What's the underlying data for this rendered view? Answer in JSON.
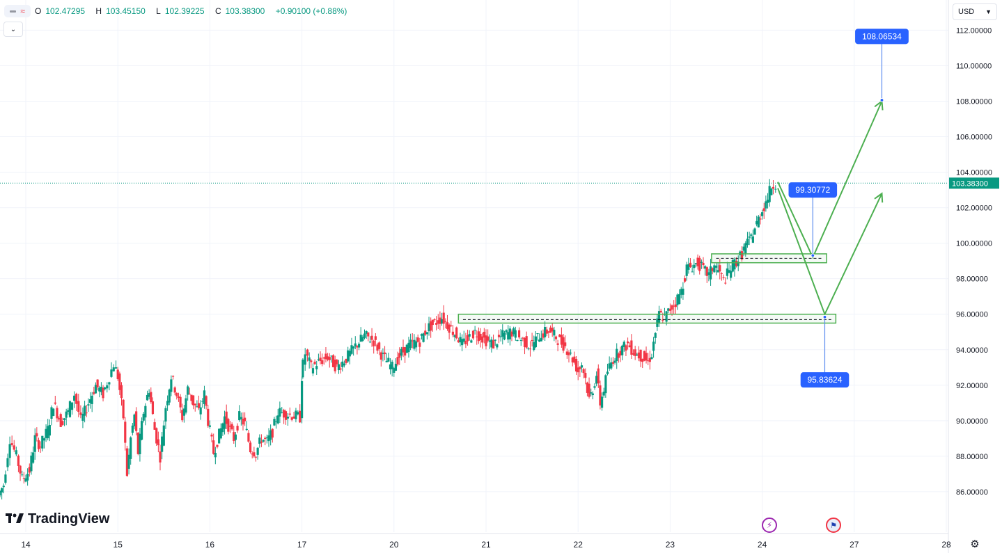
{
  "header": {
    "ohlc": [
      {
        "key": "O",
        "value": "102.47295"
      },
      {
        "key": "H",
        "value": "103.45150"
      },
      {
        "key": "L",
        "value": "102.39225"
      },
      {
        "key": "C",
        "value": "103.38300"
      }
    ],
    "change": "+0.90100 (+0.88%)",
    "currency": "USD"
  },
  "logo_text": "TradingView",
  "colors": {
    "up": "#089981",
    "down": "#f23645",
    "projection": "#4caf50",
    "label_bg": "#2962ff",
    "grid": "#f0f3fa"
  },
  "chart_data": {
    "type": "candlestick",
    "title": "",
    "ylim": [
      84.9,
      113.7
    ],
    "y_ticks": [
      "112.00000",
      "110.00000",
      "108.00000",
      "106.00000",
      "104.00000",
      "102.00000",
      "100.00000",
      "98.00000",
      "96.00000",
      "94.00000",
      "92.00000",
      "90.00000",
      "88.00000",
      "86.00000"
    ],
    "y_tick_values": [
      112,
      110,
      108,
      106,
      104,
      102,
      100,
      98,
      96,
      94,
      92,
      90,
      88,
      86
    ],
    "x_ticks": [
      {
        "label": "14",
        "x": 0.0
      },
      {
        "label": "15",
        "x": 1.0
      },
      {
        "label": "16",
        "x": 2.0
      },
      {
        "label": "17",
        "x": 3.0
      },
      {
        "label": "20",
        "x": 4.0
      },
      {
        "label": "21",
        "x": 5.0
      },
      {
        "label": "22",
        "x": 6.0
      },
      {
        "label": "23",
        "x": 7.0
      },
      {
        "label": "24",
        "x": 8.0
      },
      {
        "label": "27",
        "x": 9.0
      },
      {
        "label": "28",
        "x": 10.0
      }
    ],
    "last_price": 103.383,
    "last_price_label": "103.38300",
    "price_path": [
      [
        -0.28,
        85.8
      ],
      [
        -0.22,
        86.4
      ],
      [
        -0.15,
        89.0
      ],
      [
        -0.08,
        88.0
      ],
      [
        -0.02,
        86.7
      ],
      [
        0.06,
        87.2
      ],
      [
        0.12,
        89.0
      ],
      [
        0.18,
        88.6
      ],
      [
        0.26,
        89.5
      ],
      [
        0.32,
        91.0
      ],
      [
        0.4,
        89.9
      ],
      [
        0.48,
        90.5
      ],
      [
        0.55,
        91.5
      ],
      [
        0.62,
        90.0
      ],
      [
        0.7,
        91.0
      ],
      [
        0.78,
        92.0
      ],
      [
        0.86,
        91.5
      ],
      [
        0.93,
        92.5
      ],
      [
        0.98,
        93.2
      ],
      [
        1.02,
        92.5
      ],
      [
        1.08,
        90.2
      ],
      [
        1.12,
        87.0
      ],
      [
        1.16,
        89.0
      ],
      [
        1.2,
        90.3
      ],
      [
        1.24,
        88.2
      ],
      [
        1.3,
        90.5
      ],
      [
        1.36,
        91.8
      ],
      [
        1.42,
        89.5
      ],
      [
        1.48,
        88.0
      ],
      [
        1.54,
        90.8
      ],
      [
        1.6,
        92.5
      ],
      [
        1.66,
        91.5
      ],
      [
        1.72,
        90.2
      ],
      [
        1.78,
        91.8
      ],
      [
        1.84,
        91.0
      ],
      [
        1.9,
        90.5
      ],
      [
        1.96,
        91.5
      ],
      [
        2.0,
        90.0
      ],
      [
        2.06,
        88.2
      ],
      [
        2.12,
        89.2
      ],
      [
        2.18,
        90.2
      ],
      [
        2.28,
        89.0
      ],
      [
        2.34,
        90.2
      ],
      [
        2.4,
        89.8
      ],
      [
        2.46,
        88.4
      ],
      [
        2.52,
        88.2
      ],
      [
        2.58,
        89.0
      ],
      [
        2.64,
        88.8
      ],
      [
        2.7,
        89.4
      ],
      [
        2.76,
        90.5
      ],
      [
        3.0,
        90.2
      ],
      [
        3.01,
        92.5
      ],
      [
        3.06,
        93.8
      ],
      [
        3.12,
        93.0
      ],
      [
        3.2,
        93.3
      ],
      [
        3.3,
        93.6
      ],
      [
        3.4,
        93.0
      ],
      [
        3.5,
        93.5
      ],
      [
        3.6,
        94.2
      ],
      [
        3.7,
        94.8
      ],
      [
        3.8,
        94.5
      ],
      [
        3.9,
        93.6
      ],
      [
        4.0,
        93.0
      ],
      [
        4.1,
        93.8
      ],
      [
        4.2,
        94.3
      ],
      [
        4.3,
        94.5
      ],
      [
        4.38,
        95.2
      ],
      [
        4.46,
        95.5
      ],
      [
        4.54,
        95.8
      ],
      [
        4.62,
        95.3
      ],
      [
        4.7,
        94.8
      ],
      [
        4.76,
        94.3
      ],
      [
        4.82,
        94.6
      ],
      [
        4.9,
        95.0
      ],
      [
        5.0,
        94.6
      ],
      [
        5.1,
        94.3
      ],
      [
        5.2,
        94.8
      ],
      [
        5.3,
        95.0
      ],
      [
        5.4,
        94.6
      ],
      [
        5.5,
        94.2
      ],
      [
        5.6,
        94.8
      ],
      [
        5.7,
        95.1
      ],
      [
        5.8,
        94.6
      ],
      [
        5.88,
        94.2
      ],
      [
        5.96,
        93.5
      ],
      [
        6.02,
        92.8
      ],
      [
        6.06,
        93.2
      ],
      [
        6.1,
        92.4
      ],
      [
        6.14,
        91.2
      ],
      [
        6.18,
        91.8
      ],
      [
        6.22,
        92.6
      ],
      [
        6.26,
        91.0
      ],
      [
        6.3,
        91.8
      ],
      [
        6.34,
        92.8
      ],
      [
        6.4,
        93.5
      ],
      [
        6.48,
        94.0
      ],
      [
        6.56,
        94.3
      ],
      [
        6.64,
        93.8
      ],
      [
        6.72,
        93.6
      ],
      [
        6.78,
        93.3
      ],
      [
        6.82,
        93.8
      ],
      [
        6.86,
        95.0
      ],
      [
        6.9,
        96.0
      ],
      [
        6.96,
        95.8
      ],
      [
        7.02,
        96.3
      ],
      [
        7.08,
        96.7
      ],
      [
        7.14,
        97.3
      ],
      [
        7.2,
        98.6
      ],
      [
        7.26,
        98.7
      ],
      [
        7.32,
        98.9
      ],
      [
        7.38,
        98.5
      ],
      [
        7.44,
        98.2
      ],
      [
        7.5,
        98.8
      ],
      [
        7.56,
        98.3
      ],
      [
        7.6,
        97.9
      ],
      [
        7.66,
        98.4
      ],
      [
        7.72,
        98.9
      ],
      [
        7.76,
        99.1
      ],
      [
        7.8,
        99.4
      ],
      [
        7.84,
        99.9
      ],
      [
        7.88,
        100.1
      ],
      [
        7.92,
        100.6
      ],
      [
        7.96,
        101.1
      ],
      [
        8.0,
        101.6
      ],
      [
        8.04,
        102.1
      ],
      [
        8.08,
        102.6
      ],
      [
        8.12,
        103.2
      ],
      [
        8.17,
        103.383
      ]
    ],
    "support_zones": [
      {
        "x0": 4.7,
        "x1": 8.8,
        "y0": 95.5,
        "y1": 96.0
      },
      {
        "x0": 7.45,
        "x1": 8.7,
        "y0": 98.9,
        "y1": 99.4
      }
    ],
    "dashed_levels": [
      {
        "x0": 4.75,
        "x1": 8.75,
        "y": 95.7
      },
      {
        "x0": 7.5,
        "x1": 8.65,
        "y": 99.15
      }
    ],
    "projections": [
      {
        "points": [
          [
            8.17,
            103.45
          ],
          [
            8.55,
            99.2
          ],
          [
            9.3,
            108.0
          ]
        ]
      },
      {
        "points": [
          [
            8.17,
            103.1
          ],
          [
            8.68,
            96.0
          ],
          [
            9.3,
            102.8
          ]
        ]
      }
    ],
    "price_labels": [
      {
        "text": "108.06534",
        "x": 9.3,
        "y": 108.06,
        "label_y": 111.65
      },
      {
        "text": "99.30772",
        "x": 8.55,
        "y": 99.31,
        "label_y": 103.0
      },
      {
        "text": "95.83624",
        "x": 8.68,
        "y": 95.84,
        "label_y": 92.3
      }
    ]
  }
}
